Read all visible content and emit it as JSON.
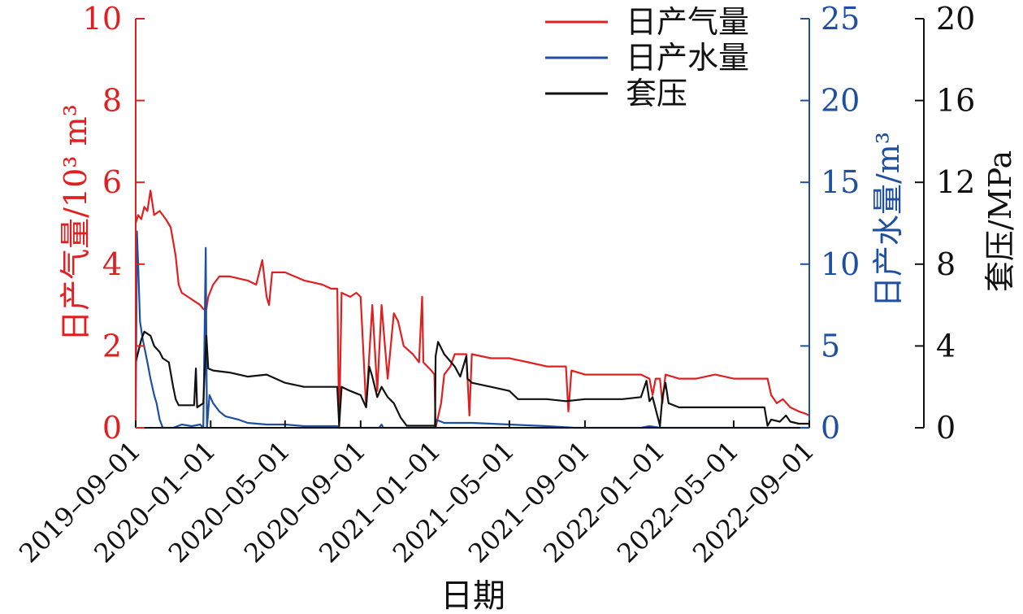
{
  "chart_data": {
    "type": "line",
    "title": "",
    "xlabel": "日期",
    "x_ticks": [
      "2019-09-01",
      "2020-01-01",
      "2020-05-01",
      "2020-09-01",
      "2021-01-01",
      "2021-05-01",
      "2021-09-01",
      "2022-01-01",
      "2022-05-01",
      "2022-09-01"
    ],
    "xlim": [
      "2019-09-01",
      "2022-09-01"
    ],
    "axes": {
      "left": {
        "label": "日产气量/10³ m³",
        "ylim": [
          0,
          10
        ],
        "ticks": [
          "0",
          "2",
          "4",
          "6",
          "8",
          "10"
        ],
        "color": "#e02020"
      },
      "right1": {
        "label": "日产水量/m³",
        "ylim": [
          0,
          25
        ],
        "ticks": [
          "0",
          "5",
          "10",
          "15",
          "20",
          "25"
        ],
        "color": "#1f4fa0"
      },
      "right2": {
        "label": "套压/MPa",
        "ylim": [
          0,
          20
        ],
        "ticks": [
          "0",
          "4",
          "8",
          "12",
          "16",
          "20"
        ],
        "color": "#111111"
      }
    },
    "legend": {
      "placement": "top-right",
      "entries": [
        "日产气量",
        "日产水量",
        "套压"
      ]
    },
    "series": [
      {
        "name": "日产气量",
        "axis": "left",
        "color": "#e02020",
        "points": [
          [
            "2019-09-01",
            5.0
          ],
          [
            "2019-09-05",
            5.2
          ],
          [
            "2019-09-10",
            5.1
          ],
          [
            "2019-09-15",
            5.4
          ],
          [
            "2019-09-20",
            5.3
          ],
          [
            "2019-09-25",
            5.8
          ],
          [
            "2019-10-01",
            5.2
          ],
          [
            "2019-10-10",
            5.3
          ],
          [
            "2019-10-20",
            5.1
          ],
          [
            "2019-10-28",
            4.9
          ],
          [
            "2019-11-05",
            4.2
          ],
          [
            "2019-11-10",
            3.5
          ],
          [
            "2019-11-15",
            3.3
          ],
          [
            "2019-11-25",
            3.2
          ],
          [
            "2019-12-05",
            3.1
          ],
          [
            "2019-12-15",
            3.0
          ],
          [
            "2019-12-20",
            2.9
          ],
          [
            "2019-12-25",
            2.9
          ],
          [
            "2019-12-28",
            3.2
          ],
          [
            "2020-01-05",
            3.5
          ],
          [
            "2020-01-15",
            3.7
          ],
          [
            "2020-02-01",
            3.7
          ],
          [
            "2020-03-01",
            3.6
          ],
          [
            "2020-03-15",
            3.5
          ],
          [
            "2020-03-25",
            4.1
          ],
          [
            "2020-04-01",
            3.2
          ],
          [
            "2020-04-05",
            3.0
          ],
          [
            "2020-04-10",
            3.8
          ],
          [
            "2020-05-01",
            3.8
          ],
          [
            "2020-06-01",
            3.6
          ],
          [
            "2020-07-01",
            3.5
          ],
          [
            "2020-07-15",
            3.4
          ],
          [
            "2020-07-25",
            3.4
          ],
          [
            "2020-07-28",
            0.0
          ],
          [
            "2020-08-01",
            3.3
          ],
          [
            "2020-08-15",
            3.2
          ],
          [
            "2020-08-25",
            3.3
          ],
          [
            "2020-09-01",
            3.2
          ],
          [
            "2020-09-10",
            0.5
          ],
          [
            "2020-09-20",
            3.0
          ],
          [
            "2020-09-28",
            0.9
          ],
          [
            "2020-10-05",
            3.0
          ],
          [
            "2020-10-15",
            1.2
          ],
          [
            "2020-10-25",
            2.8
          ],
          [
            "2020-11-01",
            2.6
          ],
          [
            "2020-11-10",
            2.0
          ],
          [
            "2020-11-25",
            1.8
          ],
          [
            "2020-12-05",
            1.6
          ],
          [
            "2020-12-10",
            3.2
          ],
          [
            "2020-12-12",
            1.6
          ],
          [
            "2020-12-25",
            1.4
          ],
          [
            "2020-12-30",
            1.3
          ],
          [
            "2021-01-01",
            0.0
          ],
          [
            "2021-01-10",
            0.6
          ],
          [
            "2021-01-15",
            1.3
          ],
          [
            "2021-01-25",
            1.5
          ],
          [
            "2021-02-01",
            1.8
          ],
          [
            "2021-02-20",
            1.8
          ],
          [
            "2021-02-25",
            0.3
          ],
          [
            "2021-03-01",
            1.8
          ],
          [
            "2021-04-01",
            1.7
          ],
          [
            "2021-05-01",
            1.7
          ],
          [
            "2021-06-01",
            1.6
          ],
          [
            "2021-07-01",
            1.5
          ],
          [
            "2021-08-01",
            1.5
          ],
          [
            "2021-08-05",
            0.4
          ],
          [
            "2021-08-10",
            1.4
          ],
          [
            "2021-09-01",
            1.3
          ],
          [
            "2021-10-01",
            1.3
          ],
          [
            "2021-11-01",
            1.3
          ],
          [
            "2021-12-01",
            1.3
          ],
          [
            "2021-12-15",
            1.2
          ],
          [
            "2021-12-20",
            0.8
          ],
          [
            "2021-12-25",
            1.2
          ],
          [
            "2022-01-01",
            1.2
          ],
          [
            "2022-01-05",
            0.6
          ],
          [
            "2022-01-10",
            1.3
          ],
          [
            "2022-02-01",
            1.2
          ],
          [
            "2022-03-01",
            1.2
          ],
          [
            "2022-04-01",
            1.3
          ],
          [
            "2022-05-01",
            1.2
          ],
          [
            "2022-06-01",
            1.2
          ],
          [
            "2022-06-25",
            1.2
          ],
          [
            "2022-07-01",
            0.8
          ],
          [
            "2022-07-10",
            0.6
          ],
          [
            "2022-07-20",
            0.7
          ],
          [
            "2022-08-01",
            0.5
          ],
          [
            "2022-08-15",
            0.4
          ],
          [
            "2022-08-25",
            0.35
          ],
          [
            "2022-09-01",
            0.3
          ]
        ]
      },
      {
        "name": "日产水量",
        "axis": "right1",
        "color": "#1f4fa0",
        "points": [
          [
            "2019-09-01",
            0.0
          ],
          [
            "2019-09-03",
            12.0
          ],
          [
            "2019-09-05",
            10.0
          ],
          [
            "2019-09-08",
            6.5
          ],
          [
            "2019-09-12",
            5.5
          ],
          [
            "2019-09-20",
            4.0
          ],
          [
            "2019-09-25",
            3.0
          ],
          [
            "2019-10-01",
            2.0
          ],
          [
            "2019-10-05",
            1.5
          ],
          [
            "2019-10-10",
            0.5
          ],
          [
            "2019-10-15",
            0.0
          ],
          [
            "2019-11-01",
            0.0
          ],
          [
            "2019-11-15",
            0.2
          ],
          [
            "2019-12-01",
            0.1
          ],
          [
            "2019-12-15",
            0.2
          ],
          [
            "2019-12-20",
            0.0
          ],
          [
            "2019-12-24",
            11.0
          ],
          [
            "2019-12-26",
            0.0
          ],
          [
            "2019-12-30",
            2.0
          ],
          [
            "2020-01-05",
            1.5
          ],
          [
            "2020-01-15",
            1.0
          ],
          [
            "2020-01-25",
            0.7
          ],
          [
            "2020-02-15",
            0.5
          ],
          [
            "2020-03-01",
            0.3
          ],
          [
            "2020-04-01",
            0.2
          ],
          [
            "2020-05-01",
            0.2
          ],
          [
            "2020-06-01",
            0.1
          ],
          [
            "2020-07-01",
            0.1
          ],
          [
            "2020-07-25",
            0.1
          ],
          [
            "2020-07-28",
            0.0
          ],
          [
            "2020-09-01",
            0.0
          ],
          [
            "2020-10-01",
            0.0
          ],
          [
            "2020-10-05",
            0.2
          ],
          [
            "2020-10-08",
            0.0
          ],
          [
            "2020-12-31",
            0.0
          ],
          [
            "2021-01-01",
            0.5
          ],
          [
            "2021-01-15",
            0.3
          ],
          [
            "2021-02-01",
            0.3
          ],
          [
            "2021-03-01",
            0.3
          ],
          [
            "2021-05-01",
            0.2
          ],
          [
            "2021-07-01",
            0.1
          ],
          [
            "2021-08-15",
            0.0
          ],
          [
            "2021-12-01",
            0.0
          ],
          [
            "2021-12-15",
            0.1
          ],
          [
            "2022-01-01",
            0.0
          ],
          [
            "2022-09-01",
            0.0
          ]
        ]
      },
      {
        "name": "套压",
        "axis": "right2",
        "color": "#111111",
        "points": [
          [
            "2019-09-01",
            3.2
          ],
          [
            "2019-09-10",
            4.3
          ],
          [
            "2019-09-15",
            4.7
          ],
          [
            "2019-09-25",
            4.5
          ],
          [
            "2019-10-01",
            4.0
          ],
          [
            "2019-10-10",
            3.7
          ],
          [
            "2019-10-15",
            3.4
          ],
          [
            "2019-10-25",
            3.2
          ],
          [
            "2019-11-01",
            2.0
          ],
          [
            "2019-11-05",
            1.4
          ],
          [
            "2019-11-10",
            1.1
          ],
          [
            "2019-11-20",
            1.1
          ],
          [
            "2019-12-05",
            1.1
          ],
          [
            "2019-12-08",
            2.9
          ],
          [
            "2019-12-10",
            1.0
          ],
          [
            "2019-12-20",
            1.2
          ],
          [
            "2019-12-25",
            4.5
          ],
          [
            "2019-12-28",
            2.9
          ],
          [
            "2020-01-05",
            2.8
          ],
          [
            "2020-02-01",
            2.7
          ],
          [
            "2020-03-01",
            2.5
          ],
          [
            "2020-04-01",
            2.6
          ],
          [
            "2020-05-01",
            2.2
          ],
          [
            "2020-06-01",
            2.0
          ],
          [
            "2020-07-01",
            2.0
          ],
          [
            "2020-07-25",
            2.0
          ],
          [
            "2020-07-28",
            0.1
          ],
          [
            "2020-08-01",
            2.0
          ],
          [
            "2020-08-15",
            1.8
          ],
          [
            "2020-09-01",
            1.6
          ],
          [
            "2020-09-10",
            1.0
          ],
          [
            "2020-09-15",
            3.0
          ],
          [
            "2020-09-20",
            2.5
          ],
          [
            "2020-09-28",
            1.5
          ],
          [
            "2020-10-05",
            2.0
          ],
          [
            "2020-10-15",
            1.5
          ],
          [
            "2020-10-25",
            1.2
          ],
          [
            "2020-11-05",
            0.5
          ],
          [
            "2020-11-15",
            0.1
          ],
          [
            "2020-12-31",
            0.1
          ],
          [
            "2021-01-01",
            3.5
          ],
          [
            "2021-01-05",
            4.2
          ],
          [
            "2021-01-15",
            3.6
          ],
          [
            "2021-02-01",
            3.0
          ],
          [
            "2021-02-10",
            2.5
          ],
          [
            "2021-02-20",
            3.5
          ],
          [
            "2021-02-22",
            2.4
          ],
          [
            "2021-03-01",
            2.2
          ],
          [
            "2021-04-01",
            2.0
          ],
          [
            "2021-05-01",
            1.8
          ],
          [
            "2021-05-15",
            1.4
          ],
          [
            "2021-06-01",
            1.4
          ],
          [
            "2021-07-01",
            1.4
          ],
          [
            "2021-08-01",
            1.3
          ],
          [
            "2021-09-01",
            1.4
          ],
          [
            "2021-10-01",
            1.4
          ],
          [
            "2021-11-01",
            1.4
          ],
          [
            "2021-12-01",
            1.5
          ],
          [
            "2021-12-10",
            2.3
          ],
          [
            "2021-12-15",
            1.3
          ],
          [
            "2021-12-20",
            1.5
          ],
          [
            "2022-01-01",
            0.1
          ],
          [
            "2022-01-05",
            1.5
          ],
          [
            "2022-01-10",
            2.2
          ],
          [
            "2022-01-15",
            1.2
          ],
          [
            "2022-02-01",
            1.0
          ],
          [
            "2022-03-01",
            1.0
          ],
          [
            "2022-04-01",
            1.0
          ],
          [
            "2022-05-01",
            1.0
          ],
          [
            "2022-06-01",
            1.0
          ],
          [
            "2022-06-20",
            1.0
          ],
          [
            "2022-06-25",
            0.1
          ],
          [
            "2022-07-01",
            0.4
          ],
          [
            "2022-07-15",
            0.3
          ],
          [
            "2022-07-25",
            0.6
          ],
          [
            "2022-08-01",
            0.3
          ],
          [
            "2022-08-15",
            0.2
          ],
          [
            "2022-09-01",
            0.2
          ]
        ]
      }
    ]
  }
}
